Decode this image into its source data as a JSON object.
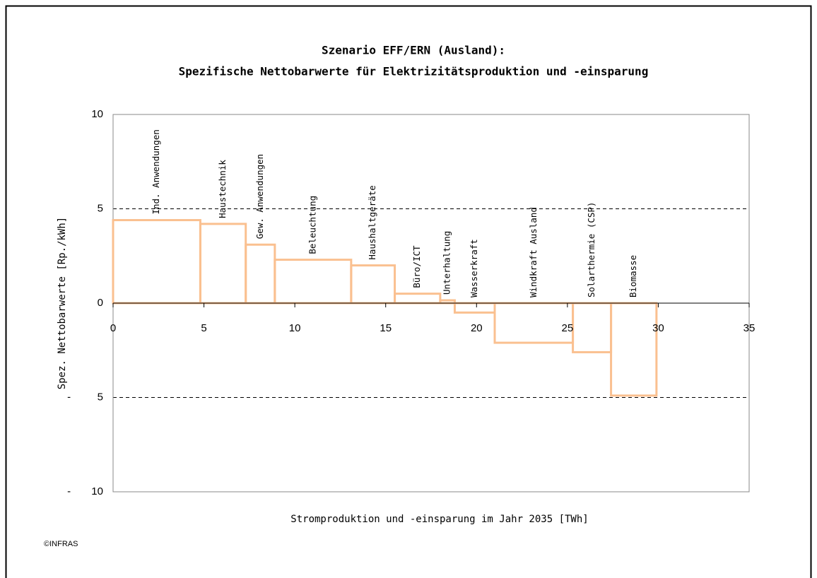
{
  "chart_data": {
    "type": "step",
    "title": [
      "Szenario EFF/ERN (Ausland):",
      "Spezifische Nettobarwerte für Elektrizitätsproduktion und -einsparung"
    ],
    "x_label": "Stromproduktion und -einsparung im Jahr 2035 [TWh]",
    "y_label": "Spez. Nettobarwerte [Rp./kWh]",
    "source": "©INFRAS",
    "categories": [
      "Ind. Anwendungen",
      "Haustechnik",
      "Gew. Anwendungen",
      "Beleuchtung",
      "Haushaltgeräte",
      "Büro/ICT",
      "Unterhaltung",
      "Wasserkraft",
      "Windkraft Ausland",
      "Solarthermie (CSP)",
      "Biomasse"
    ],
    "edges": [
      0,
      4.8,
      7.3,
      8.9,
      13.1,
      15.5,
      18.0,
      18.8,
      21.0,
      25.3,
      27.4,
      29.9
    ],
    "values": [
      4.4,
      4.2,
      3.1,
      2.3,
      2.0,
      0.5,
      0.15,
      -0.5,
      -2.1,
      -2.6,
      -4.9
    ],
    "color": "#fac090",
    "xlim": [
      0,
      35
    ],
    "xticks": [
      0,
      5,
      10,
      15,
      20,
      25,
      30,
      35
    ],
    "ylim": [
      -10,
      10
    ],
    "yticks": [
      {
        "value": -10,
        "label": "-       10"
      },
      {
        "value": -5,
        "label": "-         5"
      },
      0,
      5,
      10
    ],
    "grid": true
  }
}
